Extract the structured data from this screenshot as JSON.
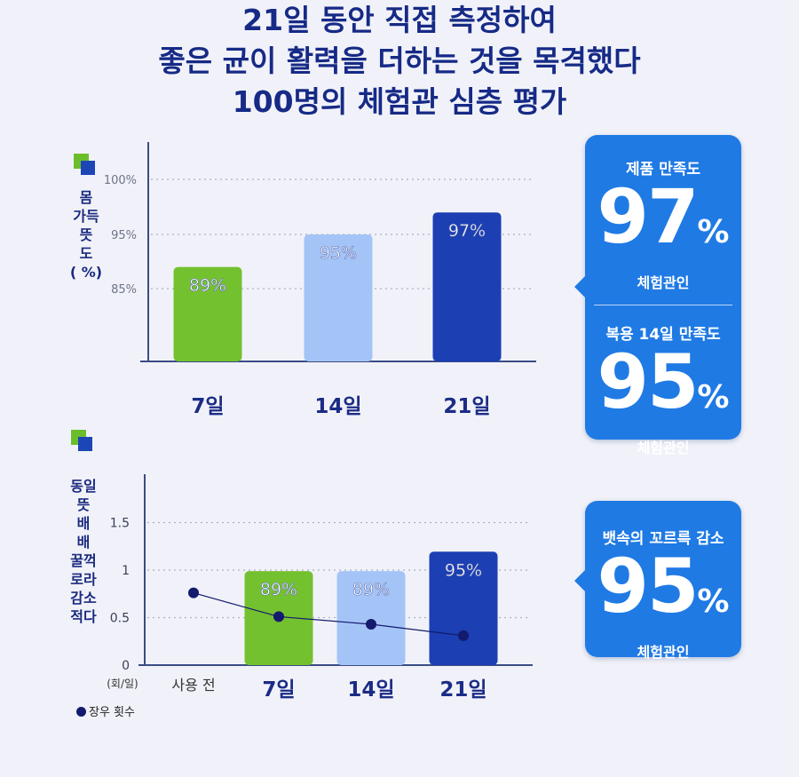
{
  "title_lines": [
    "21일 동안 직접 측정하여",
    "좋은 균이 활력을 더하는 것을 목격했다",
    "100명의 체험관 심층 평가"
  ],
  "chart1_ylabel": "몸\n가득\n뜻\n도\n( %)",
  "chart2_ylabel": "동일\n뜻\n배\n배\n꿀꺽\n로라\n감소\n적다",
  "card1": {
    "top_label": "제품 만족도",
    "top_value": "97",
    "top_sub": "체험관인",
    "bottom_label": "복용 14일 만족도",
    "bottom_value": "95",
    "bottom_sub": "체험관인",
    "percent": "%"
  },
  "card2": {
    "label": "뱃속의 꼬르륵 감소",
    "value": "95",
    "sub": "체험관인",
    "percent": "%"
  },
  "legend_label": "장우 횟수",
  "colors": {
    "green": "#74c130",
    "light_blue": "#a4c4f7",
    "dark_blue": "#1c3fb3",
    "line": "#141a6e"
  },
  "chart_data": [
    {
      "type": "bar",
      "categories": [
        "7일",
        "14일",
        "21일"
      ],
      "values": [
        89,
        95,
        97
      ],
      "value_labels": [
        "89%",
        "95%",
        "97%"
      ],
      "ytick_labels": [
        "100%",
        "95%",
        "85%"
      ],
      "ylabel": "몸 가득 뜻 도 ( %)",
      "grid": true
    },
    {
      "type": "bar",
      "categories": [
        "사용 전",
        "7일",
        "14일",
        "21일"
      ],
      "bars": [
        null,
        89,
        89,
        95
      ],
      "value_labels": [
        "",
        "89%",
        "89%",
        "95%"
      ],
      "line_series": {
        "name": "장우 횟수",
        "values": [
          0.76,
          0.51,
          0.43,
          0.31
        ]
      },
      "yticks": [
        0,
        0.5,
        1,
        1.5
      ],
      "ytick_labels": [
        "0",
        "0.5",
        "1",
        "1.5"
      ],
      "ylim": [
        0,
        2
      ],
      "yunit": "(회/일)",
      "ylabel": "동일 뜻 배 배 꿀꺽 로라 감소 적다",
      "grid": true
    }
  ]
}
